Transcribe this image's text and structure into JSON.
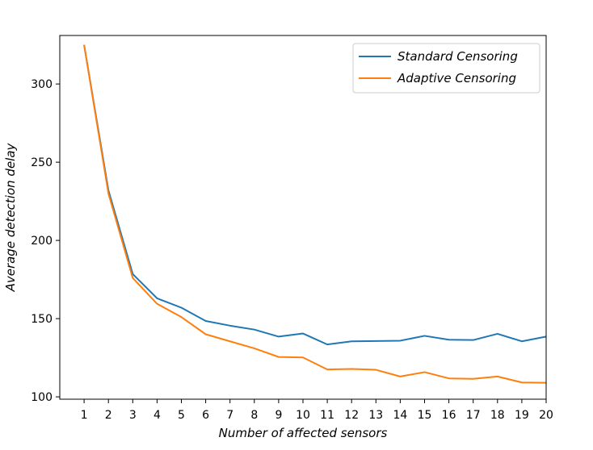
{
  "chart_data": {
    "type": "line",
    "xlabel": "Number of affected sensors",
    "ylabel": "Average detection delay",
    "x": [
      1,
      2,
      3,
      4,
      5,
      6,
      7,
      8,
      9,
      10,
      11,
      12,
      13,
      14,
      15,
      16,
      17,
      18,
      19,
      20
    ],
    "xticks": [
      1,
      2,
      3,
      4,
      5,
      6,
      7,
      8,
      9,
      10,
      11,
      12,
      13,
      14,
      15,
      16,
      17,
      18,
      19,
      20
    ],
    "yticks": [
      100,
      150,
      200,
      250,
      300
    ],
    "xlim": [
      0,
      20
    ],
    "ylim": [
      98.5,
      331
    ],
    "grid": false,
    "legend_position": "top-right",
    "series": [
      {
        "name": "Standard Censoring",
        "color": "#1f77b4",
        "values": [
          325,
          232,
          178.5,
          163,
          157,
          148.5,
          145.5,
          143,
          138.5,
          140.5,
          133.5,
          135.5,
          135.7,
          135.9,
          139,
          136.5,
          136.3,
          140.3,
          135.5,
          138.5
        ]
      },
      {
        "name": "Adaptive Censoring",
        "color": "#ff7f0e",
        "values": [
          325,
          230,
          176,
          159.5,
          151,
          140,
          135.5,
          131,
          125.5,
          125.2,
          117.5,
          117.8,
          117.3,
          113,
          115.8,
          111.8,
          111.5,
          113,
          109.2,
          109
        ]
      }
    ]
  }
}
